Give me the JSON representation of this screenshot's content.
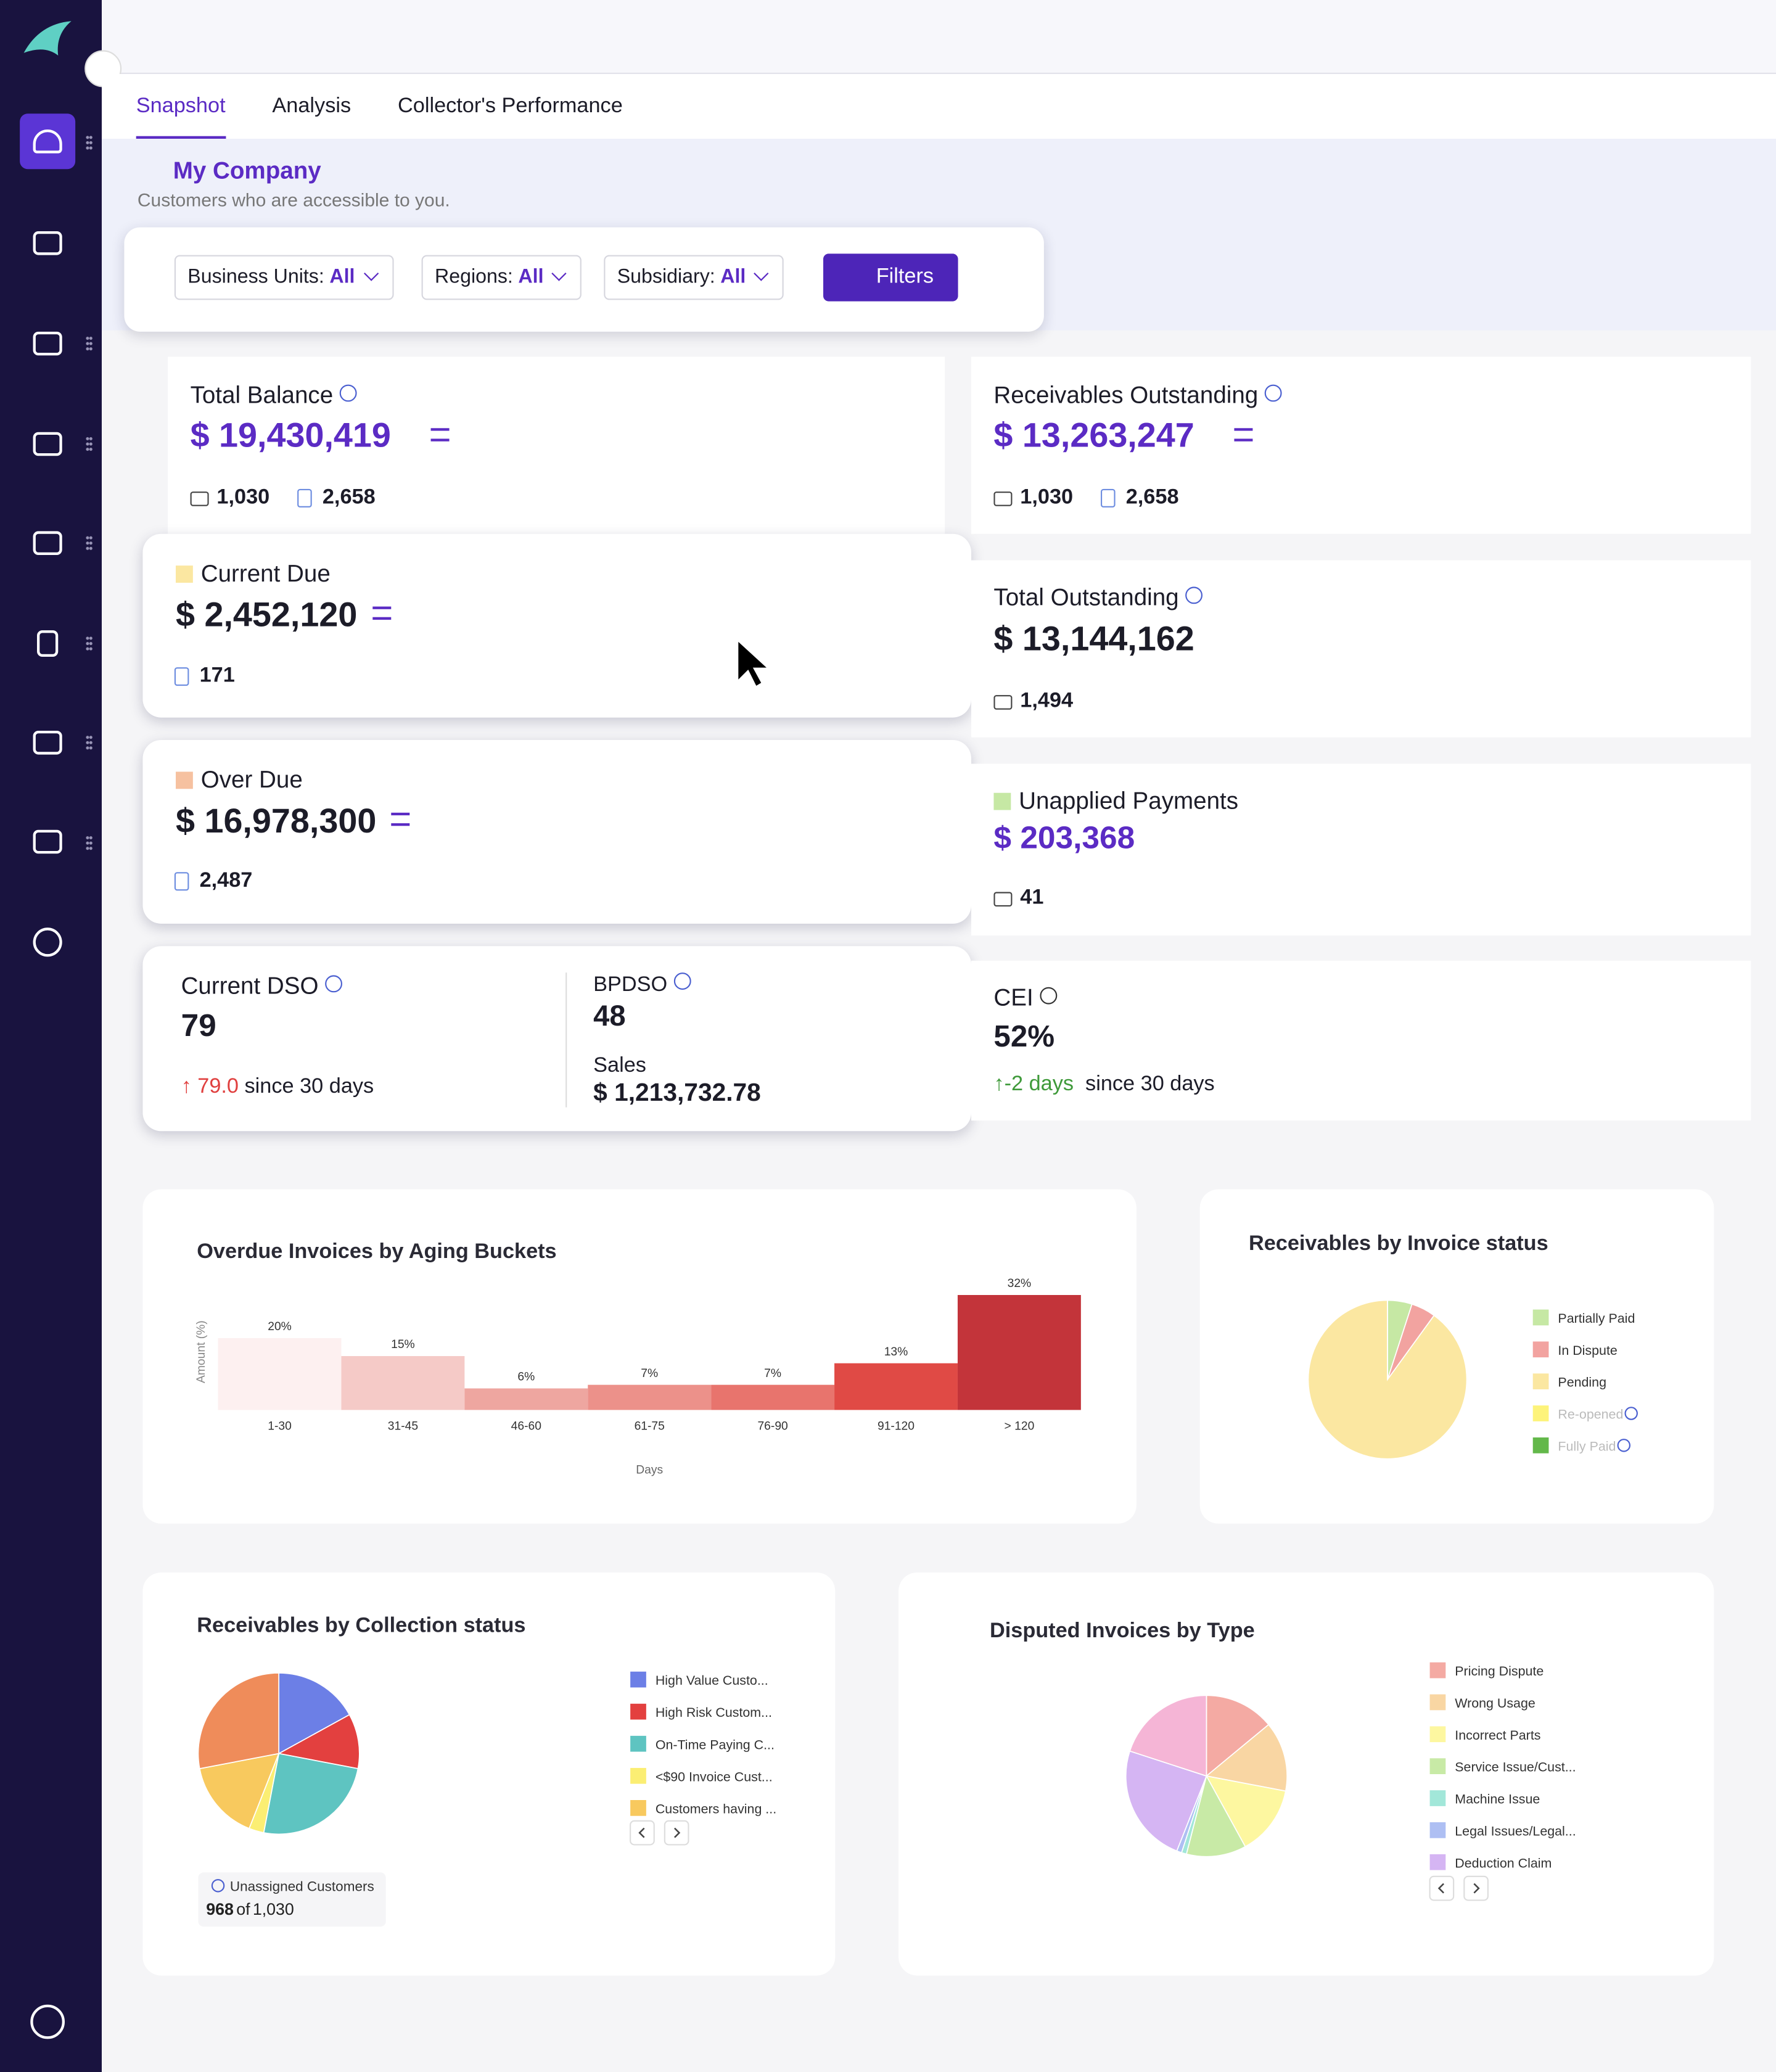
{
  "tabs": [
    "Snapshot",
    "Analysis",
    "Collector's Performance"
  ],
  "company": {
    "name": "My Company",
    "subtitle": "Customers who are accessible to you."
  },
  "filters": [
    {
      "label": "Business Units:",
      "value": "All"
    },
    {
      "label": "Regions:",
      "value": "All"
    },
    {
      "label": "Subsidiary:",
      "value": "All"
    }
  ],
  "filters_button": "Filters",
  "cards": {
    "total_balance": {
      "title": "Total Balance",
      "amount": "$ 19,430,419",
      "customers": "1,030",
      "invoices": "2,658"
    },
    "receivables_outstanding": {
      "title": "Receivables Outstanding",
      "amount": "$ 13,263,247",
      "customers": "1,030",
      "invoices": "2,658"
    },
    "current_due": {
      "title": "Current Due",
      "amount": "$ 2,452,120",
      "invoices": "171"
    },
    "total_outstanding": {
      "title": "Total Outstanding",
      "amount": "$ 13,144,162",
      "customers": "1,494"
    },
    "over_due": {
      "title": "Over Due",
      "amount": "$ 16,978,300",
      "invoices": "2,487"
    },
    "unapplied_payments": {
      "title": "Unapplied Payments",
      "amount": "$ 203,368",
      "customers": "41"
    },
    "current_dso": {
      "title": "Current DSO",
      "value": "79",
      "change": "79.0",
      "since": "since 30 days"
    },
    "bpdso": {
      "title": "BPDSO",
      "value": "48",
      "sales_label": "Sales",
      "sales": "$ 1,213,732.78"
    },
    "cei": {
      "title": "CEI",
      "value": "52%",
      "change": "-2 days",
      "since": "since 30 days"
    }
  },
  "chart_data": [
    {
      "type": "bar",
      "title": "Overdue Invoices by Aging Buckets",
      "x_label": "Days",
      "y_label": "Amount (%)",
      "categories": [
        "1-30",
        "31-45",
        "46-60",
        "61-75",
        "76-90",
        "91-120",
        "> 120"
      ],
      "values": [
        20,
        15,
        6,
        7,
        7,
        13,
        32
      ],
      "value_labels": [
        "20%",
        "15%",
        "6%",
        "7%",
        "7%",
        "13%",
        "32%"
      ],
      "colors": [
        "#fdf0f0",
        "#f5cac7",
        "#eea6a0",
        "#ec918a",
        "#e8746d",
        "#e04a45",
        "#c3343a"
      ],
      "ylim": [
        0,
        32
      ]
    },
    {
      "type": "pie",
      "title": "Receivables by Invoice status",
      "categories": [
        "Partially Paid",
        "In Dispute",
        "Pending",
        "Re-opened",
        "Fully Paid"
      ],
      "values": [
        5,
        5,
        90,
        0,
        0
      ],
      "colors": [
        "#c6e8a4",
        "#f2a3a0",
        "#fbe7a1",
        "#fdf37a",
        "#63b84a"
      ],
      "legend_muted": [
        false,
        false,
        false,
        true,
        true
      ]
    },
    {
      "type": "pie",
      "title": "Receivables by Collection status",
      "categories": [
        "High Value Custo...",
        "High Risk Custom...",
        "On-Time Paying C...",
        "<$90 Invoice Cust...",
        "Customers having ...",
        null
      ],
      "values": [
        17,
        11,
        25,
        3,
        16,
        28
      ],
      "colors": [
        "#6c7fe6",
        "#e3403f",
        "#5ec4c1",
        "#fbee73",
        "#f8c95e",
        "#ef8c5a"
      ],
      "note": {
        "label": "Unassigned Customers",
        "count": "968",
        "of": "of",
        "total": "1,030"
      }
    },
    {
      "type": "pie",
      "title": "Disputed Invoices by Type",
      "categories": [
        "Pricing Dispute",
        "Wrong Usage",
        "Incorrect Parts",
        "Service Issue/Cust...",
        "Machine Issue",
        "Legal Issues/Legal...",
        "Deduction Claim",
        null
      ],
      "values": [
        14,
        14,
        14,
        12,
        1,
        1,
        24,
        20
      ],
      "colors": [
        "#f4aaa3",
        "#f9d6a3",
        "#fdf7a0",
        "#c8eaa6",
        "#a2e7d9",
        "#aebff3",
        "#d5b5f3",
        "#f5b5d6"
      ]
    }
  ]
}
